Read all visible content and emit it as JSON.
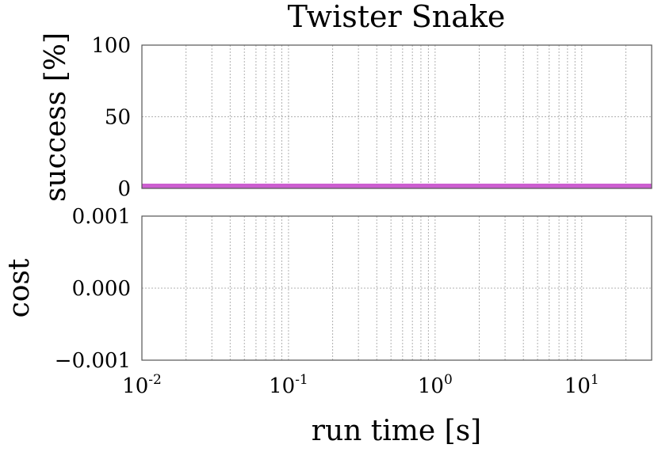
{
  "chart_data": {
    "title": "Twister Snake",
    "xlabel": "run time [s]",
    "xscale": "log",
    "xlim": [
      0.01,
      30
    ],
    "xticks": [
      {
        "base": "10",
        "exp": "-2"
      },
      {
        "base": "10",
        "exp": "-1"
      },
      {
        "base": "10",
        "exp": "0"
      },
      {
        "base": "10",
        "exp": "1"
      }
    ],
    "grid": true,
    "panels": [
      {
        "name": "success",
        "type": "line",
        "ylabel": "success [%]",
        "ylim": [
          0,
          100
        ],
        "yticks": [
          {
            "value": 0,
            "label": "0"
          },
          {
            "value": 50,
            "label": "50"
          },
          {
            "value": 100,
            "label": "100"
          }
        ],
        "series": [
          {
            "color": "#cc5fd0",
            "x": [
              0.01,
              30
            ],
            "y": [
              0,
              0
            ]
          }
        ]
      },
      {
        "name": "cost",
        "type": "line",
        "ylabel": "cost",
        "ylim": [
          -0.001,
          0.001
        ],
        "yticks": [
          {
            "value": -0.001,
            "label": "−0.001"
          },
          {
            "value": 0,
            "label": "0.000"
          },
          {
            "value": 0.001,
            "label": "0.001"
          }
        ],
        "series": []
      }
    ]
  }
}
